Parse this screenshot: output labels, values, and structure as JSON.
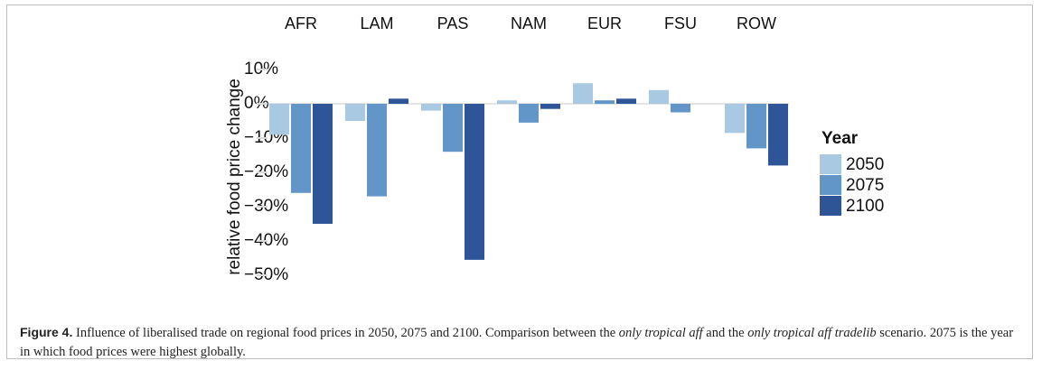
{
  "chart_data": {
    "type": "bar",
    "y_label": "relative food price change",
    "categories": [
      "AFR",
      "LAM",
      "PAS",
      "NAM",
      "EUR",
      "FSU",
      "ROW"
    ],
    "series": [
      {
        "name": "2050",
        "color": "#a9c9e2",
        "values": [
          -9,
          -5,
          -2,
          1,
          6,
          4,
          -8.5
        ]
      },
      {
        "name": "2075",
        "color": "#6396c8",
        "values": [
          -26,
          -27,
          -14,
          -5.5,
          1,
          -2.5,
          -13
        ]
      },
      {
        "name": "2100",
        "color": "#2e5597",
        "values": [
          -35,
          1.5,
          -45.5,
          -1.5,
          1.5,
          0,
          -18
        ]
      }
    ],
    "legend_title": "Year",
    "legend": "right",
    "ylim": [
      -50,
      10
    ],
    "yticks": [
      {
        "value": 10,
        "label": "10%"
      },
      {
        "value": 0,
        "label": "0%"
      },
      {
        "value": -10,
        "label": "−10%"
      },
      {
        "value": -20,
        "label": "−20%"
      },
      {
        "value": -30,
        "label": "−30%"
      },
      {
        "value": -40,
        "label": "−40%"
      },
      {
        "value": -50,
        "label": "−50%"
      }
    ]
  },
  "caption": {
    "label": "Figure 4.",
    "parts": [
      " Influence of liberalised trade on regional food prices in 2050, 2075 and 2100. Comparison between the ",
      "only tropical aff",
      " and the ",
      "only tropical aff tradelib",
      " scenario. 2075 is the year in which food prices were highest globally."
    ]
  }
}
